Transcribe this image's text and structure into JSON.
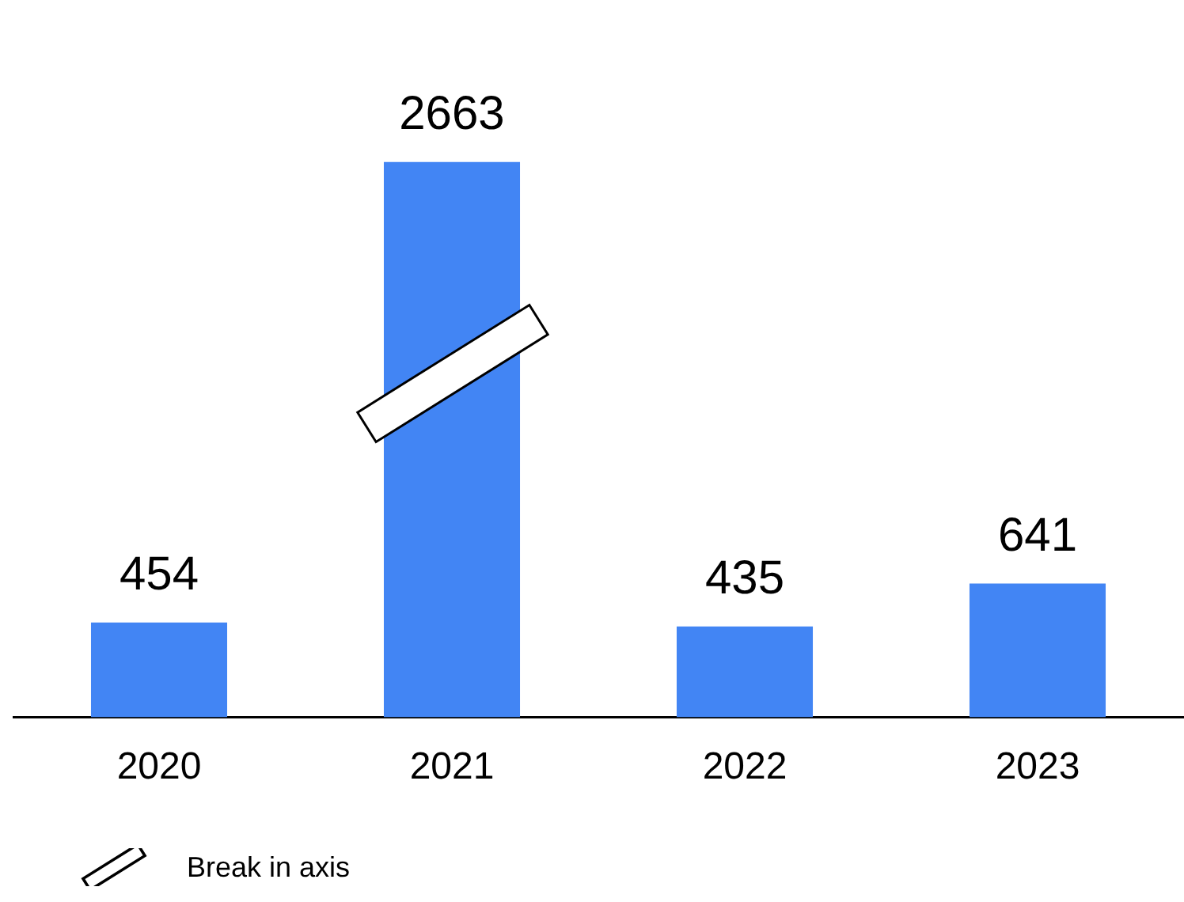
{
  "chart_data": {
    "type": "bar",
    "categories": [
      "2020",
      "2021",
      "2022",
      "2023"
    ],
    "values": [
      454,
      2663,
      435,
      641
    ],
    "color": "#4285f4",
    "data_labels": true,
    "tick_labels": "x",
    "annotations": [
      "Break in axis"
    ]
  }
}
